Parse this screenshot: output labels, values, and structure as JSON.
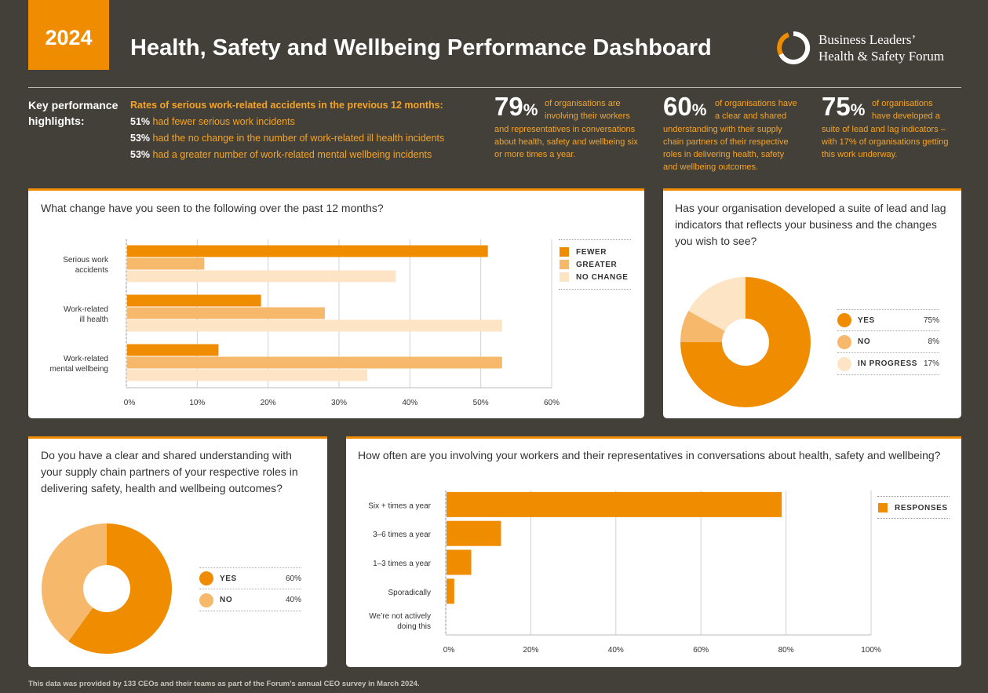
{
  "header": {
    "year": "2024",
    "title": "Health, Safety and Wellbeing Performance Dashboard",
    "logo_line1": "Business Leaders’",
    "logo_line2": "Health & Safety Forum"
  },
  "colors": {
    "fewer": "#f08c00",
    "greater": "#f6b86a",
    "no_change": "#fde4c4",
    "accent": "#f08c00",
    "background": "#434039"
  },
  "highlights": {
    "label": "Key performance highlights:",
    "rates_heading": "Rates of serious work-related accidents in the previous 12 months:",
    "rows": [
      {
        "pct": "51%",
        "text": "had fewer serious work incidents"
      },
      {
        "pct": "53%",
        "text": "had the no change in the number of work-related ill health incidents"
      },
      {
        "pct": "53%",
        "text": "had a greater number of work-related mental wellbeing incidents"
      }
    ],
    "stats": [
      {
        "num": "79",
        "pc": "%",
        "line1": "of organisations are",
        "line2": "involving their workers",
        "rest": "and representatives in conversations about health, safety and wellbeing six or more times a year."
      },
      {
        "num": "60",
        "pc": "%",
        "line1": "of organisations have",
        "line2": "a clear and shared",
        "rest": "understanding with their supply chain partners of their respective roles in delivering health, safety and wellbeing outcomes."
      },
      {
        "num": "75",
        "pc": "%",
        "line1": "of organisations",
        "line2": "have developed a",
        "rest": "suite of lead and lag indicators – with 17% of organisations getting this work underway."
      }
    ]
  },
  "chart_data": [
    {
      "type": "bar",
      "orientation": "horizontal",
      "title": "What change have you seen to the following over the past 12 months?",
      "categories": [
        "Serious work accidents",
        "Work-related ill health",
        "Work-related mental wellbeing"
      ],
      "category_lines": [
        [
          "Serious work",
          "accidents"
        ],
        [
          "Work-related",
          "ill health"
        ],
        [
          "Work-related",
          "mental wellbeing"
        ]
      ],
      "series": [
        {
          "name": "FEWER",
          "values": [
            51,
            19,
            13
          ]
        },
        {
          "name": "GREATER",
          "values": [
            11,
            28,
            53
          ]
        },
        {
          "name": "NO CHANGE",
          "values": [
            38,
            53,
            34
          ]
        }
      ],
      "xlim": [
        0,
        60
      ],
      "xticks": [
        "0%",
        "10%",
        "20%",
        "30%",
        "40%",
        "50%",
        "60%"
      ],
      "legend": "right"
    },
    {
      "type": "pie",
      "title": "Has your organisation developed a suite of lead and lag indicators that reflects your business and the changes you wish to see?",
      "labels": [
        "YES",
        "NO",
        "IN PROGRESS"
      ],
      "values": [
        75,
        8,
        17
      ],
      "value_labels": [
        "75%",
        "8%",
        "17%"
      ]
    },
    {
      "type": "pie",
      "title": "Do you have a clear and shared understanding with your supply chain partners of your respective roles in delivering safety, health and wellbeing outcomes?",
      "labels": [
        "YES",
        "NO"
      ],
      "values": [
        60,
        40
      ],
      "value_labels": [
        "60%",
        "40%"
      ]
    },
    {
      "type": "bar",
      "orientation": "horizontal",
      "title": "How often are you involving your workers and their representatives in conversations about health, safety and wellbeing?",
      "categories": [
        "Six + times a year",
        "3–6 times a year",
        "1–3 times a year",
        "Sporadically",
        "We’re not actively doing this"
      ],
      "category_lines": [
        [
          "Six + times a year"
        ],
        [
          "3–6 times a year"
        ],
        [
          "1–3 times a year"
        ],
        [
          "Sporadically"
        ],
        [
          "We’re not actively",
          "doing this"
        ]
      ],
      "series": [
        {
          "name": "RESPONSES",
          "values": [
            79,
            13,
            6,
            2,
            0
          ]
        }
      ],
      "xlim": [
        0,
        100
      ],
      "xticks": [
        "0%",
        "20%",
        "40%",
        "60%",
        "80%",
        "100%"
      ],
      "legend": "right"
    }
  ],
  "footer": "This data was provided by 133 CEOs and their teams as part of the Forum’s annual CEO survey in March 2024."
}
